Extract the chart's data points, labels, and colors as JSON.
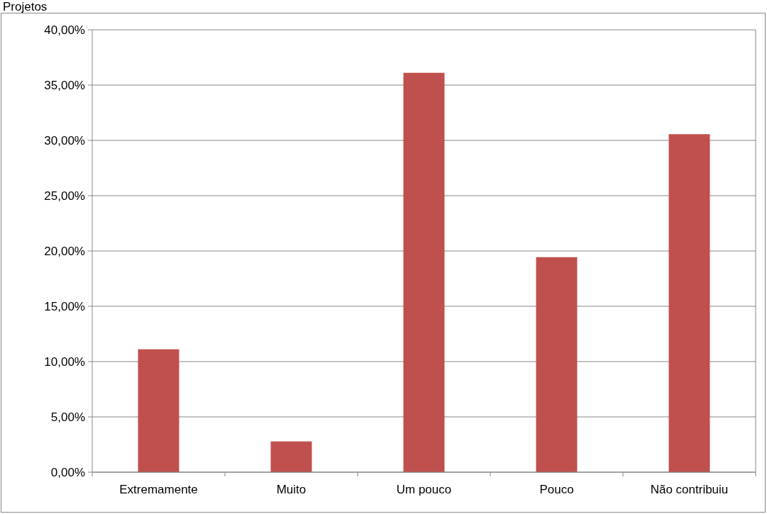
{
  "chart_data": {
    "type": "bar",
    "title": "Projetos",
    "categories": [
      "Extremamente",
      "Muito",
      "Um pouco",
      "Pouco",
      "Não contribuiu"
    ],
    "values": [
      11.11,
      2.78,
      36.11,
      19.44,
      30.56
    ],
    "color": "#c0504d",
    "ylim": [
      0,
      40
    ],
    "yticks": [
      {
        "value": 0,
        "label": "0,00%"
      },
      {
        "value": 5,
        "label": "5,00%"
      },
      {
        "value": 10,
        "label": "10,00%"
      },
      {
        "value": 15,
        "label": "15,00%"
      },
      {
        "value": 20,
        "label": "20,00%"
      },
      {
        "value": 25,
        "label": "25,00%"
      },
      {
        "value": 30,
        "label": "30,00%"
      },
      {
        "value": 35,
        "label": "35,00%"
      },
      {
        "value": 40,
        "label": "40,00%"
      }
    ],
    "grid": "y"
  }
}
